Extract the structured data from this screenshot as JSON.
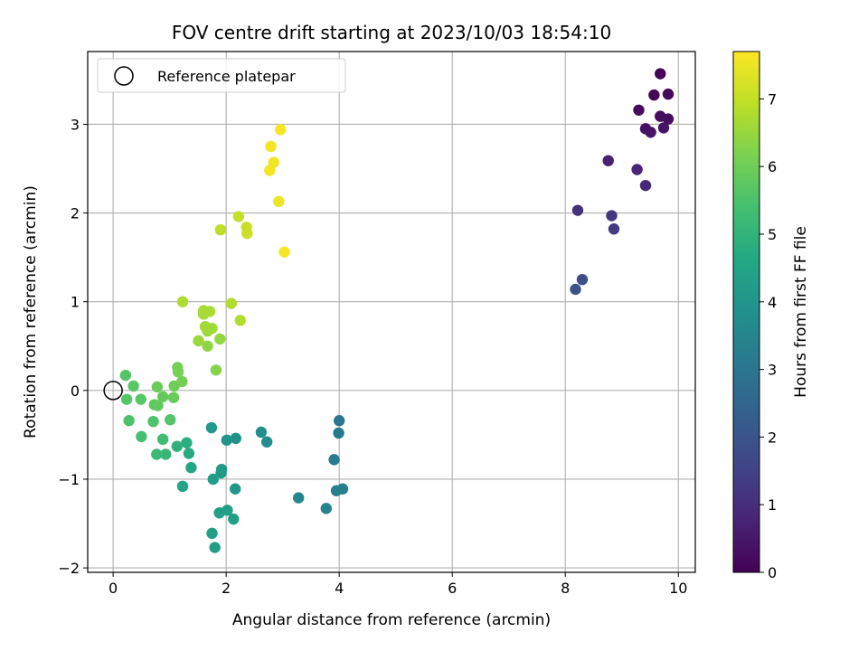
{
  "chart_data": {
    "type": "scatter",
    "title": "FOV centre drift starting at 2023/10/03 18:54:10",
    "xlabel": "Angular distance from reference (arcmin)",
    "ylabel": "Rotation from reference (arcmin)",
    "xlim": [
      -0.45,
      10.3
    ],
    "ylim": [
      -2.05,
      3.82
    ],
    "xticks": [
      0,
      2,
      4,
      6,
      8,
      10
    ],
    "yticks": [
      -2,
      -1,
      0,
      1,
      2,
      3
    ],
    "grid": true,
    "legend": {
      "placement": "top-left",
      "entries": [
        "Reference platepar"
      ]
    },
    "reference_point": {
      "x": 0,
      "y": 0
    },
    "colorbar": {
      "label": "Hours from first FF file",
      "colormap": "viridis",
      "range": [
        0,
        7.7
      ],
      "ticks": [
        0,
        1,
        2,
        3,
        4,
        5,
        6,
        7
      ]
    },
    "points": [
      {
        "x": 9.68,
        "y": 3.57,
        "t": 0.05
      },
      {
        "x": 9.57,
        "y": 3.33,
        "t": 0.1
      },
      {
        "x": 9.82,
        "y": 3.34,
        "t": 0.15
      },
      {
        "x": 9.3,
        "y": 3.16,
        "t": 0.2
      },
      {
        "x": 9.68,
        "y": 3.09,
        "t": 0.25
      },
      {
        "x": 9.82,
        "y": 3.06,
        "t": 0.3
      },
      {
        "x": 9.42,
        "y": 2.95,
        "t": 0.35
      },
      {
        "x": 9.51,
        "y": 2.91,
        "t": 0.4
      },
      {
        "x": 9.74,
        "y": 2.96,
        "t": 0.45
      },
      {
        "x": 8.76,
        "y": 2.59,
        "t": 0.7
      },
      {
        "x": 9.27,
        "y": 2.49,
        "t": 0.8
      },
      {
        "x": 9.42,
        "y": 2.31,
        "t": 0.9
      },
      {
        "x": 8.22,
        "y": 2.03,
        "t": 1.1
      },
      {
        "x": 8.82,
        "y": 1.97,
        "t": 1.2
      },
      {
        "x": 8.86,
        "y": 1.82,
        "t": 1.3
      },
      {
        "x": 8.3,
        "y": 1.25,
        "t": 1.8
      },
      {
        "x": 8.18,
        "y": 1.14,
        "t": 2.0
      },
      {
        "x": 4.0,
        "y": -0.34,
        "t": 3.0
      },
      {
        "x": 3.99,
        "y": -0.48,
        "t": 3.1
      },
      {
        "x": 3.91,
        "y": -0.78,
        "t": 3.2
      },
      {
        "x": 4.06,
        "y": -1.11,
        "t": 3.3
      },
      {
        "x": 3.95,
        "y": -1.13,
        "t": 3.35
      },
      {
        "x": 3.77,
        "y": -1.33,
        "t": 3.45
      },
      {
        "x": 3.28,
        "y": -1.21,
        "t": 3.55
      },
      {
        "x": 2.72,
        "y": -0.58,
        "t": 3.7
      },
      {
        "x": 2.62,
        "y": -0.47,
        "t": 3.8
      },
      {
        "x": 2.17,
        "y": -0.54,
        "t": 3.9
      },
      {
        "x": 2.01,
        "y": -0.56,
        "t": 4.0
      },
      {
        "x": 1.74,
        "y": -0.42,
        "t": 4.1
      },
      {
        "x": 2.16,
        "y": -1.11,
        "t": 4.05
      },
      {
        "x": 1.92,
        "y": -0.89,
        "t": 4.15
      },
      {
        "x": 1.91,
        "y": -0.93,
        "t": 4.2
      },
      {
        "x": 1.77,
        "y": -1.0,
        "t": 4.25
      },
      {
        "x": 2.02,
        "y": -1.35,
        "t": 4.3
      },
      {
        "x": 1.88,
        "y": -1.38,
        "t": 4.35
      },
      {
        "x": 2.13,
        "y": -1.45,
        "t": 4.4
      },
      {
        "x": 1.75,
        "y": -1.61,
        "t": 4.35
      },
      {
        "x": 1.8,
        "y": -1.77,
        "t": 4.3
      },
      {
        "x": 1.38,
        "y": -0.87,
        "t": 4.6
      },
      {
        "x": 1.34,
        "y": -0.71,
        "t": 4.7
      },
      {
        "x": 1.3,
        "y": -0.59,
        "t": 4.8
      },
      {
        "x": 1.13,
        "y": -0.63,
        "t": 4.9
      },
      {
        "x": 1.23,
        "y": -1.08,
        "t": 4.55
      },
      {
        "x": 0.93,
        "y": -0.72,
        "t": 5.1
      },
      {
        "x": 0.77,
        "y": -0.72,
        "t": 5.2
      },
      {
        "x": 0.88,
        "y": -0.55,
        "t": 5.3
      },
      {
        "x": 0.5,
        "y": -0.52,
        "t": 5.4
      },
      {
        "x": 0.28,
        "y": -0.34,
        "t": 5.5
      },
      {
        "x": 0.71,
        "y": -0.35,
        "t": 5.55
      },
      {
        "x": 1.01,
        "y": -0.33,
        "t": 5.6
      },
      {
        "x": 0.24,
        "y": -0.1,
        "t": 5.65
      },
      {
        "x": 0.49,
        "y": -0.1,
        "t": 5.7
      },
      {
        "x": 0.73,
        "y": -0.16,
        "t": 5.75
      },
      {
        "x": 0.79,
        "y": -0.17,
        "t": 5.8
      },
      {
        "x": 0.88,
        "y": -0.07,
        "t": 5.85
      },
      {
        "x": 1.07,
        "y": -0.08,
        "t": 5.9
      },
      {
        "x": 0.22,
        "y": 0.17,
        "t": 5.6
      },
      {
        "x": 0.36,
        "y": 0.05,
        "t": 5.7
      },
      {
        "x": 0.78,
        "y": 0.04,
        "t": 5.95
      },
      {
        "x": 1.08,
        "y": 0.05,
        "t": 6.0
      },
      {
        "x": 1.22,
        "y": 0.1,
        "t": 6.05
      },
      {
        "x": 1.15,
        "y": 0.21,
        "t": 6.1
      },
      {
        "x": 1.14,
        "y": 0.26,
        "t": 6.1
      },
      {
        "x": 1.82,
        "y": 0.23,
        "t": 6.3
      },
      {
        "x": 1.67,
        "y": 0.5,
        "t": 6.4
      },
      {
        "x": 1.89,
        "y": 0.58,
        "t": 6.45
      },
      {
        "x": 1.51,
        "y": 0.56,
        "t": 6.5
      },
      {
        "x": 1.67,
        "y": 0.67,
        "t": 6.55
      },
      {
        "x": 1.75,
        "y": 0.7,
        "t": 6.6
      },
      {
        "x": 1.63,
        "y": 0.72,
        "t": 6.62
      },
      {
        "x": 1.6,
        "y": 0.86,
        "t": 6.65
      },
      {
        "x": 1.6,
        "y": 0.9,
        "t": 6.68
      },
      {
        "x": 1.71,
        "y": 0.89,
        "t": 6.7
      },
      {
        "x": 1.23,
        "y": 1.0,
        "t": 6.75
      },
      {
        "x": 2.09,
        "y": 0.98,
        "t": 6.8
      },
      {
        "x": 2.25,
        "y": 0.79,
        "t": 6.8
      },
      {
        "x": 1.9,
        "y": 1.81,
        "t": 6.95
      },
      {
        "x": 2.22,
        "y": 1.96,
        "t": 7.0
      },
      {
        "x": 2.36,
        "y": 1.84,
        "t": 7.05
      },
      {
        "x": 2.37,
        "y": 1.77,
        "t": 7.08
      },
      {
        "x": 3.03,
        "y": 1.56,
        "t": 7.6
      },
      {
        "x": 2.93,
        "y": 2.13,
        "t": 7.5
      },
      {
        "x": 2.84,
        "y": 2.57,
        "t": 7.55
      },
      {
        "x": 2.77,
        "y": 2.48,
        "t": 7.58
      },
      {
        "x": 2.79,
        "y": 2.75,
        "t": 7.6
      },
      {
        "x": 2.96,
        "y": 2.94,
        "t": 7.62
      }
    ]
  }
}
